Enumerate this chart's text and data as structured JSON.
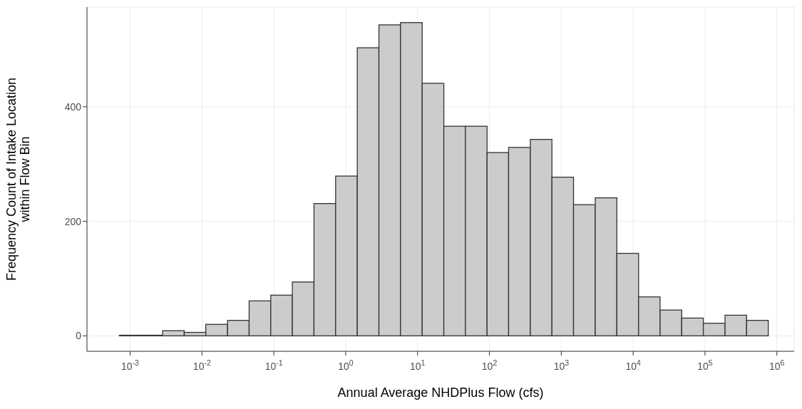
{
  "chart_data": {
    "type": "histogram",
    "xlabel": "Annual Average NHDPlus Flow (cfs)",
    "ylabel": "Frequency Count of Intake Location\nwithin Flow Bin",
    "bins": [
      0.000708,
      0.00142,
      0.00283,
      0.00566,
      0.0113,
      0.0227,
      0.0453,
      0.0906,
      0.181,
      0.362,
      0.724,
      1.45,
      2.9,
      5.79,
      11.6,
      23.2,
      46.3,
      92.7,
      185,
      371,
      741,
      1480,
      2970,
      5930,
      11900,
      23700,
      47400,
      94800,
      190000,
      379000,
      759000
    ],
    "values": [
      1,
      1,
      9,
      6,
      20,
      27,
      61,
      71,
      94,
      231,
      279,
      503,
      543,
      547,
      441,
      366,
      366,
      320,
      329,
      343,
      277,
      229,
      241,
      144,
      68,
      45,
      31,
      22,
      36,
      27
    ],
    "color": "#cccccc",
    "log": "x",
    "xlim": [
      0.000251,
      1740000
    ],
    "xticks": [
      {
        "value": 0.001,
        "label": "10$^{-3}$"
      },
      {
        "value": 0.01,
        "label": "10$^{-2}$"
      },
      {
        "value": 0.1,
        "label": "10$^{-1}$"
      },
      {
        "value": 1,
        "label": "10$^{0}$"
      },
      {
        "value": 10,
        "label": "10$^{1}$"
      },
      {
        "value": 100,
        "label": "10$^{2}$"
      },
      {
        "value": 1000,
        "label": "10$^{3}$"
      },
      {
        "value": 10000,
        "label": "10$^{4}$"
      },
      {
        "value": 100000,
        "label": "10$^{5}$"
      },
      {
        "value": 1000000,
        "label": "10$^{6}$"
      }
    ],
    "ylim": [
      -27,
      574
    ],
    "yticks": [
      0,
      200,
      400
    ],
    "grid": true
  }
}
